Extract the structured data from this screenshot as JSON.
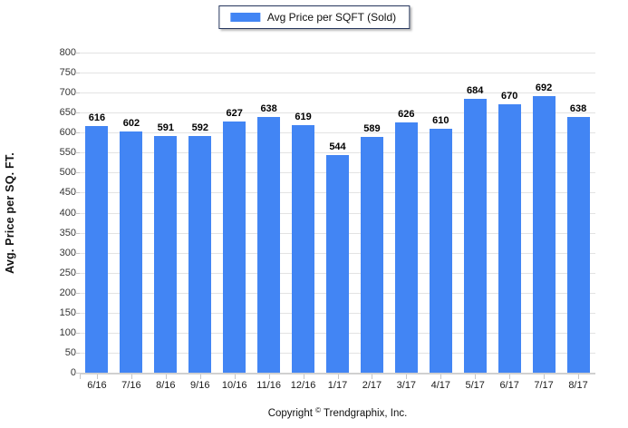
{
  "legend": {
    "label": "Avg Price per SQFT (Sold)"
  },
  "footer": {
    "copyright_prefix": "Copyright",
    "copyright_symbol": "©",
    "copyright_suffix": "Trendgraphix, Inc."
  },
  "colors": {
    "bar": "#4285F4",
    "gridline": "#e3e3e3",
    "axis": "#c6c6c6"
  },
  "chart_data": {
    "type": "bar",
    "title": "",
    "categories": [
      "6/16",
      "7/16",
      "8/16",
      "9/16",
      "10/16",
      "11/16",
      "12/16",
      "1/17",
      "2/17",
      "3/17",
      "4/17",
      "5/17",
      "6/17",
      "7/17",
      "8/17"
    ],
    "values": [
      616,
      602,
      591,
      592,
      627,
      638,
      619,
      544,
      589,
      626,
      610,
      684,
      670,
      692,
      638
    ],
    "xlabel": "",
    "ylabel": "Avg. Price per SQ. FT.",
    "ylim": [
      0,
      800
    ],
    "ytick_step": 50,
    "grid": true,
    "legend_position": "top",
    "legend_entries": [
      "Avg Price per SQFT (Sold)"
    ]
  }
}
